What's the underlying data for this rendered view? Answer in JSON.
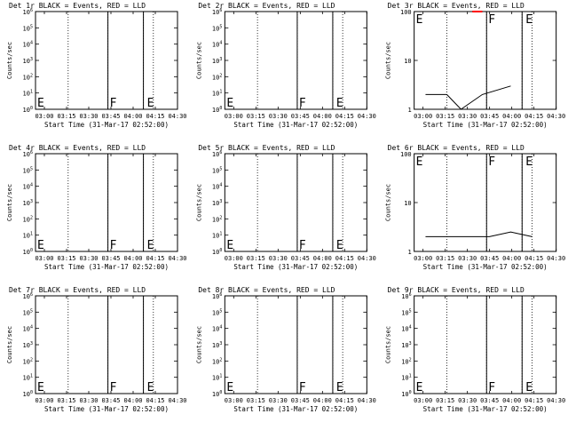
{
  "colors": {
    "events": "#000000",
    "lld": "#ff0000",
    "background": "#ffffff"
  },
  "chart_data": [
    {
      "type": "line",
      "title": "Det 1r BLACK = Events, RED = LLD",
      "xlabel": "Start Time (31-Mar-17 02:52:00)",
      "ylabel": "Counts/sec",
      "x_ticks": [
        "03:00",
        "03:15",
        "03:30",
        "03:45",
        "04:00",
        "04:15",
        "04:30"
      ],
      "y_scale": "log",
      "ylim": [
        1,
        1000000
      ],
      "y_ticks": [
        "10^0",
        "10^1",
        "10^2",
        "10^3",
        "10^4",
        "10^5",
        "10^6"
      ],
      "markers": [
        {
          "label": "E"
        },
        {
          "label": "F"
        },
        {
          "label": "E"
        }
      ],
      "series": []
    },
    {
      "type": "line",
      "title": "Det 2r BLACK = Events, RED = LLD",
      "xlabel": "Start Time (31-Mar-17 02:52:00)",
      "ylabel": "Counts/sec",
      "x_ticks": [
        "03:00",
        "03:15",
        "03:30",
        "03:45",
        "04:00",
        "04:15",
        "04:30"
      ],
      "y_scale": "log",
      "ylim": [
        1,
        1000000
      ],
      "y_ticks": [
        "10^0",
        "10^1",
        "10^2",
        "10^3",
        "10^4",
        "10^5",
        "10^6"
      ],
      "markers": [
        {
          "label": "E"
        },
        {
          "label": "F"
        },
        {
          "label": "E"
        }
      ],
      "series": []
    },
    {
      "type": "line",
      "title": "Det 3r BLACK = Events, RED = LLD",
      "xlabel": "Start Time (31-Mar-17 02:52:00)",
      "ylabel": "Counts/sec",
      "x_ticks": [
        "03:00",
        "03:15",
        "03:30",
        "03:45",
        "04:00",
        "04:15",
        "04:30"
      ],
      "y_scale": "log",
      "ylim": [
        1,
        100
      ],
      "y_ticks": [
        "1",
        "10",
        "100"
      ],
      "markers": [
        {
          "label": "E"
        },
        {
          "label": "F"
        },
        {
          "label": "E"
        }
      ],
      "series": [
        {
          "color": "#000000",
          "times": [
            "03:00",
            "03:15",
            "03:25",
            "03:40",
            "04:00"
          ],
          "values": [
            2,
            2,
            1,
            2,
            3
          ]
        },
        {
          "color": "#ff0000",
          "times": [
            "03:33",
            "03:40"
          ],
          "values": [
            100,
            100
          ]
        }
      ]
    },
    {
      "type": "line",
      "title": "Det 4r BLACK = Events, RED = LLD",
      "xlabel": "Start Time (31-Mar-17 02:52:00)",
      "ylabel": "Counts/sec",
      "x_ticks": [
        "03:00",
        "03:15",
        "03:30",
        "03:45",
        "04:00",
        "04:15",
        "04:30"
      ],
      "y_scale": "log",
      "ylim": [
        1,
        1000000
      ],
      "y_ticks": [
        "10^0",
        "10^1",
        "10^2",
        "10^3",
        "10^4",
        "10^5",
        "10^6"
      ],
      "markers": [
        {
          "label": "E"
        },
        {
          "label": "F"
        },
        {
          "label": "E"
        }
      ],
      "series": []
    },
    {
      "type": "line",
      "title": "Det 5r BLACK = Events, RED = LLD",
      "xlabel": "Start Time (31-Mar-17 02:52:00)",
      "ylabel": "Counts/sec",
      "x_ticks": [
        "03:00",
        "03:15",
        "03:30",
        "03:45",
        "04:00",
        "04:15",
        "04:30"
      ],
      "y_scale": "log",
      "ylim": [
        1,
        1000000
      ],
      "y_ticks": [
        "10^0",
        "10^1",
        "10^2",
        "10^3",
        "10^4",
        "10^5",
        "10^6"
      ],
      "markers": [
        {
          "label": "E"
        },
        {
          "label": "F"
        },
        {
          "label": "E"
        }
      ],
      "series": []
    },
    {
      "type": "line",
      "title": "Det 6r BLACK = Events, RED = LLD",
      "xlabel": "Start Time (31-Mar-17 02:52:00)",
      "ylabel": "Counts/sec",
      "x_ticks": [
        "03:00",
        "03:15",
        "03:30",
        "03:45",
        "04:00",
        "04:15",
        "04:30"
      ],
      "y_scale": "log",
      "ylim": [
        1,
        100
      ],
      "y_ticks": [
        "1",
        "10",
        "100"
      ],
      "markers": [
        {
          "label": "E"
        },
        {
          "label": "F"
        },
        {
          "label": "E"
        }
      ],
      "series": [
        {
          "color": "#000000",
          "times": [
            "03:00",
            "03:15",
            "03:30",
            "03:45",
            "04:00",
            "04:15"
          ],
          "values": [
            2,
            2,
            2,
            2,
            2.5,
            2
          ]
        }
      ]
    },
    {
      "type": "line",
      "title": "Det 7r BLACK = Events, RED = LLD",
      "xlabel": "Start Time (31-Mar-17 02:52:00)",
      "ylabel": "Counts/sec",
      "x_ticks": [
        "03:00",
        "03:15",
        "03:30",
        "03:45",
        "04:00",
        "04:15",
        "04:30"
      ],
      "y_scale": "log",
      "ylim": [
        1,
        1000000
      ],
      "y_ticks": [
        "10^0",
        "10^1",
        "10^2",
        "10^3",
        "10^4",
        "10^5",
        "10^6"
      ],
      "markers": [
        {
          "label": "E"
        },
        {
          "label": "F"
        },
        {
          "label": "E"
        }
      ],
      "series": []
    },
    {
      "type": "line",
      "title": "Det 8r BLACK = Events, RED = LLD",
      "xlabel": "Start Time (31-Mar-17 02:52:00)",
      "ylabel": "Counts/sec",
      "x_ticks": [
        "03:00",
        "03:15",
        "03:30",
        "03:45",
        "04:00",
        "04:15",
        "04:30"
      ],
      "y_scale": "log",
      "ylim": [
        1,
        1000000
      ],
      "y_ticks": [
        "10^0",
        "10^1",
        "10^2",
        "10^3",
        "10^4",
        "10^5",
        "10^6"
      ],
      "markers": [
        {
          "label": "E"
        },
        {
          "label": "F"
        },
        {
          "label": "E"
        }
      ],
      "series": []
    },
    {
      "type": "line",
      "title": "Det 9r BLACK = Events, RED = LLD",
      "xlabel": "Start Time (31-Mar-17 02:52:00)",
      "ylabel": "Counts/sec",
      "x_ticks": [
        "03:00",
        "03:15",
        "03:30",
        "03:45",
        "04:00",
        "04:15",
        "04:30"
      ],
      "y_scale": "log",
      "ylim": [
        1,
        1000000
      ],
      "y_ticks": [
        "10^0",
        "10^1",
        "10^2",
        "10^3",
        "10^4",
        "10^5",
        "10^6"
      ],
      "markers": [
        {
          "label": "E"
        },
        {
          "label": "F"
        },
        {
          "label": "E"
        }
      ],
      "series": []
    }
  ]
}
